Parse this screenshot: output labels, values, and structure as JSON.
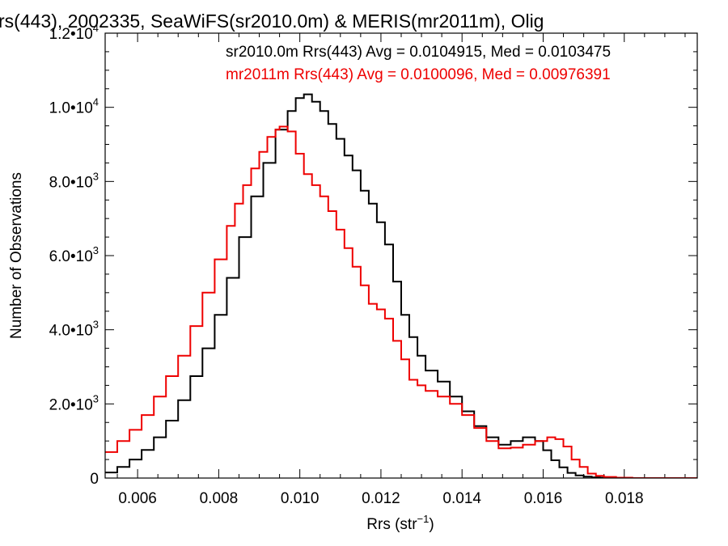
{
  "chart_data": {
    "type": "line",
    "title": "rs(443), 2002335, SeaWiFS(sr2010.0m) & MERIS(mr2011m), Olig",
    "xlabel": "Rrs (str",
    "xlabel_sup": "−1",
    "xlabel_tail": ")",
    "ylabel": "Number of Observations",
    "xlim": [
      0.0052,
      0.0198
    ],
    "ylim": [
      0,
      12000
    ],
    "xticks": [
      {
        "value": 0.006,
        "label": "0.006"
      },
      {
        "value": 0.008,
        "label": "0.008"
      },
      {
        "value": 0.01,
        "label": "0.010"
      },
      {
        "value": 0.012,
        "label": "0.012"
      },
      {
        "value": 0.014,
        "label": "0.014"
      },
      {
        "value": 0.016,
        "label": "0.016"
      },
      {
        "value": 0.018,
        "label": "0.018"
      }
    ],
    "yticks": [
      {
        "value": 0,
        "mant": "0",
        "exp": ""
      },
      {
        "value": 2000,
        "mant": "2.0•10",
        "exp": "3"
      },
      {
        "value": 4000,
        "mant": "4.0•10",
        "exp": "3"
      },
      {
        "value": 6000,
        "mant": "6.0•10",
        "exp": "3"
      },
      {
        "value": 8000,
        "mant": "8.0•10",
        "exp": "3"
      },
      {
        "value": 10000,
        "mant": "1.0•10",
        "exp": "4"
      },
      {
        "value": 12000,
        "mant": "1.2•10",
        "exp": "4"
      }
    ],
    "grid": false,
    "legend_position": "top-right",
    "series": [
      {
        "name": "sr2010.0m Rrs(443) Avg = 0.0104915, Med = 0.0103475",
        "color": "#000000",
        "x": [
          0.0052,
          0.0055,
          0.0058,
          0.0061,
          0.0064,
          0.0067,
          0.007,
          0.0073,
          0.0076,
          0.0079,
          0.0082,
          0.0085,
          0.0088,
          0.0091,
          0.0094,
          0.0097,
          0.0099,
          0.0101,
          0.0103,
          0.0105,
          0.0107,
          0.0109,
          0.0111,
          0.0113,
          0.0115,
          0.0117,
          0.0119,
          0.0121,
          0.0123,
          0.0125,
          0.0127,
          0.0129,
          0.0131,
          0.0134,
          0.0137,
          0.014,
          0.0143,
          0.0146,
          0.0149,
          0.0152,
          0.0155,
          0.0158,
          0.016,
          0.0162,
          0.0164,
          0.0166,
          0.0168,
          0.017,
          0.0172,
          0.0174,
          0.0176,
          0.0178,
          0.018,
          0.019,
          0.0198
        ],
        "values": [
          150,
          300,
          500,
          760,
          1100,
          1550,
          2100,
          2750,
          3500,
          4400,
          5400,
          6500,
          7600,
          8500,
          9400,
          9900,
          10250,
          10350,
          10150,
          9900,
          9550,
          9150,
          8700,
          8300,
          7750,
          7400,
          6900,
          6300,
          5300,
          4400,
          3800,
          3300,
          2900,
          2600,
          2200,
          1800,
          1400,
          1100,
          900,
          1000,
          1100,
          1000,
          750,
          480,
          290,
          140,
          70,
          40,
          20,
          10,
          0,
          0,
          0,
          0,
          0
        ]
      },
      {
        "name": "mr2011m Rrs(443) Avg = 0.0100096, Med = 0.00976391",
        "color": "#ee0000",
        "x": [
          0.0052,
          0.0055,
          0.0058,
          0.0061,
          0.0064,
          0.0067,
          0.007,
          0.0073,
          0.0076,
          0.0079,
          0.0082,
          0.0084,
          0.0086,
          0.0088,
          0.009,
          0.0092,
          0.0094,
          0.0095,
          0.0097,
          0.0099,
          0.0101,
          0.0103,
          0.0105,
          0.0107,
          0.0109,
          0.0111,
          0.0113,
          0.0115,
          0.0117,
          0.0119,
          0.0121,
          0.0123,
          0.0125,
          0.0127,
          0.0129,
          0.0131,
          0.0134,
          0.0137,
          0.014,
          0.0143,
          0.0146,
          0.0149,
          0.0152,
          0.0155,
          0.0158,
          0.0161,
          0.0163,
          0.0165,
          0.0167,
          0.0169,
          0.0171,
          0.0173,
          0.0175,
          0.0178,
          0.0182,
          0.019,
          0.0198
        ],
        "values": [
          700,
          1000,
          1300,
          1700,
          2200,
          2750,
          3300,
          4100,
          5000,
          5900,
          6800,
          7400,
          7900,
          8350,
          8800,
          9200,
          9400,
          9480,
          9350,
          8750,
          8200,
          7900,
          7600,
          7200,
          6700,
          6200,
          5700,
          5200,
          4700,
          4550,
          4300,
          3700,
          3200,
          2650,
          2500,
          2350,
          2200,
          2000,
          1700,
          1350,
          1000,
          800,
          820,
          900,
          1000,
          1100,
          1050,
          850,
          500,
          300,
          120,
          60,
          30,
          10,
          0,
          0,
          0
        ]
      }
    ]
  }
}
